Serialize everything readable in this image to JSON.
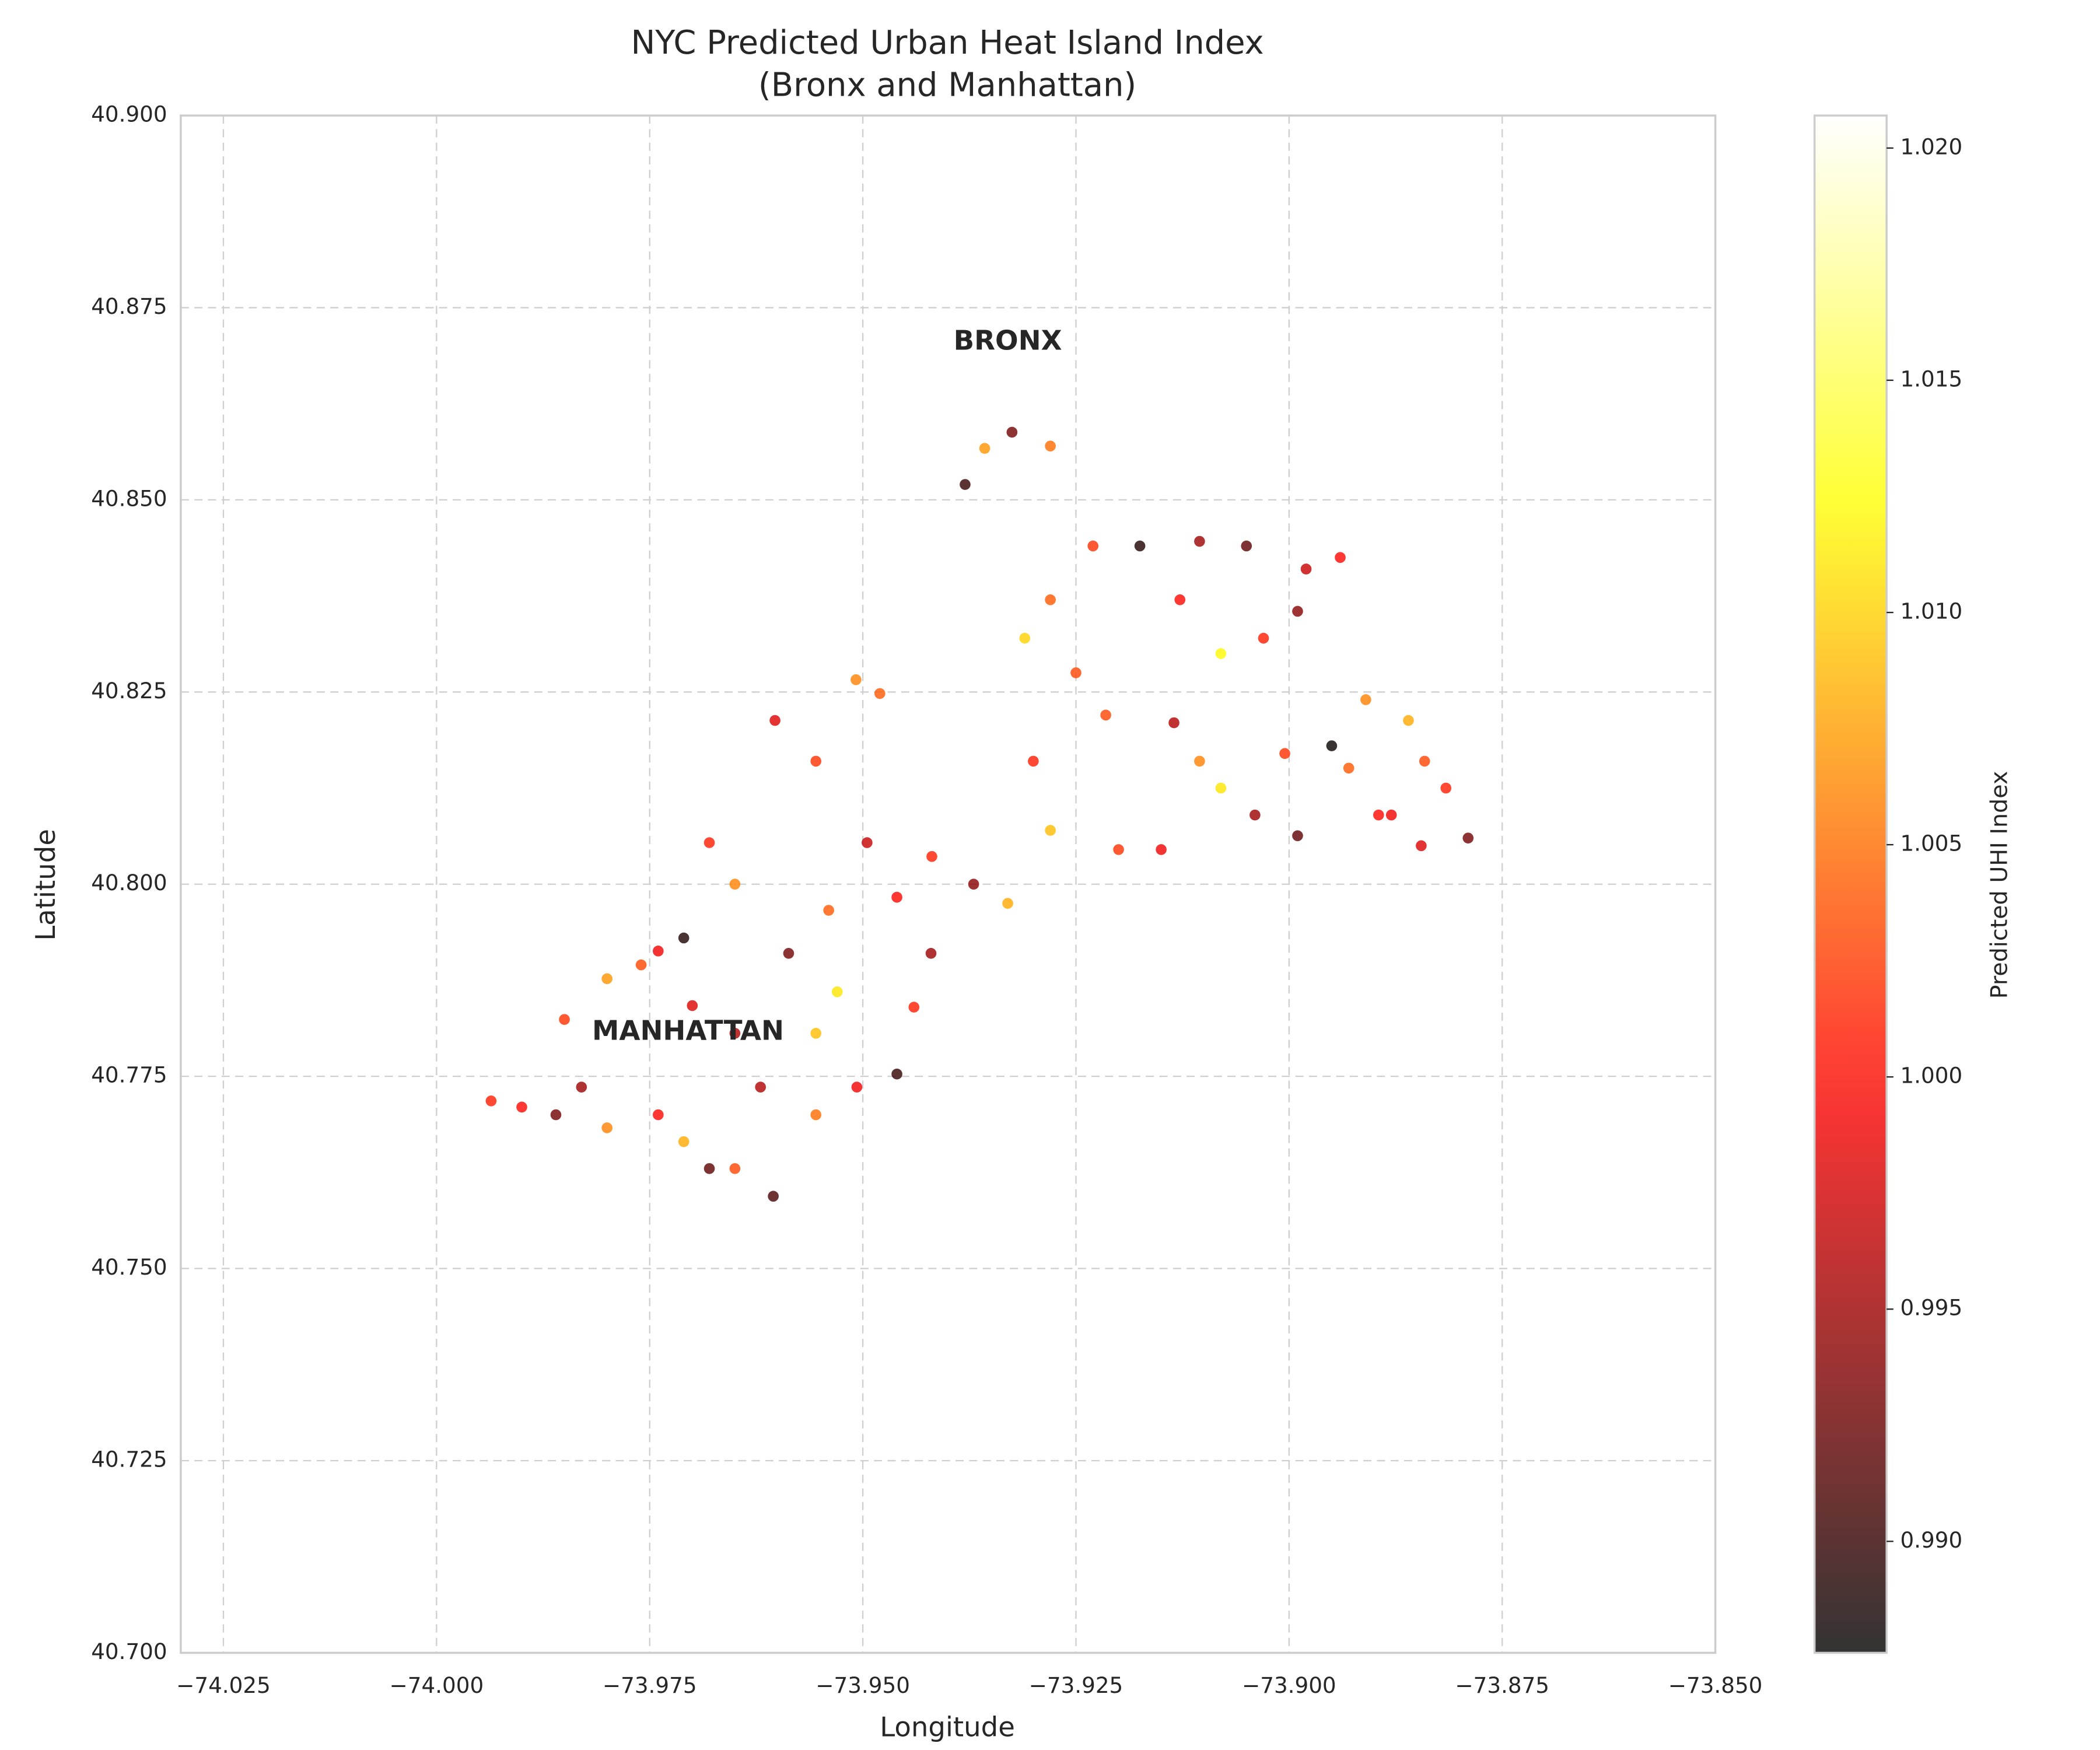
{
  "chart_data": {
    "type": "scatter",
    "title": "NYC Predicted Urban Heat Island Index",
    "subtitle": "(Bronx and Manhattan)",
    "x_label": "Longitude",
    "y_label": "Latitude",
    "colorbar_label": "Predicted UHI Index",
    "colormap": "hot",
    "alpha": 0.8,
    "grid": true,
    "annotations": [
      {
        "text": "BRONX",
        "x": -73.933,
        "y": 40.8705
      },
      {
        "text": "MANHATTAN",
        "x": -73.9705,
        "y": 40.7807
      }
    ],
    "xlim": [
      -74.03,
      -73.85
    ],
    "ylim": [
      40.7,
      40.9
    ],
    "clim": [
      0.9876,
      1.0207
    ],
    "xticks": [
      {
        "value": -74.025,
        "label": "−74.025"
      },
      {
        "value": -74.0,
        "label": "−74.000"
      },
      {
        "value": -73.975,
        "label": "−73.975"
      },
      {
        "value": -73.95,
        "label": "−73.950"
      },
      {
        "value": -73.925,
        "label": "−73.925"
      },
      {
        "value": -73.9,
        "label": "−73.900"
      },
      {
        "value": -73.875,
        "label": "−73.875"
      },
      {
        "value": -73.85,
        "label": "−73.850"
      }
    ],
    "yticks": [
      {
        "value": 40.7,
        "label": "40.700"
      },
      40.725,
      {
        "value": 40.75,
        "label": "40.750"
      },
      40.775,
      {
        "value": 40.8,
        "label": "40.800"
      },
      40.825,
      {
        "value": 40.85,
        "label": "40.850"
      },
      40.875,
      {
        "value": 40.9,
        "label": "40.900"
      }
    ],
    "cticks": [
      {
        "value": 0.99,
        "label": "0.990"
      },
      0.995,
      {
        "value": 1.0,
        "label": "1.000"
      },
      1.005,
      {
        "value": 1.01,
        "label": "1.010"
      },
      1.015,
      {
        "value": 1.02,
        "label": "1.020"
      }
    ],
    "x": [
      -73.938,
      -73.9357,
      -73.9325,
      -73.928,
      -73.923,
      -73.928,
      -73.931,
      -73.925,
      -73.93,
      -73.928,
      -73.92,
      -73.915,
      -73.9175,
      -73.9105,
      -73.905,
      -73.9128,
      -73.908,
      -73.903,
      -73.898,
      -73.894,
      -73.899,
      -73.9215,
      -73.9135,
      -73.9105,
      -73.908,
      -73.904,
      -73.899,
      -73.9005,
      -73.895,
      -73.891,
      -73.886,
      -73.8841,
      -73.8816,
      -73.879,
      -73.8845,
      -73.8895,
      -73.893,
      -73.888,
      -73.968,
      -73.965,
      -73.9587,
      -73.9555,
      -73.962,
      -73.965,
      -73.9605,
      -73.9555,
      -73.9507,
      -73.946,
      -73.944,
      -73.942,
      -73.946,
      -73.9495,
      -73.9555,
      -73.9603,
      -73.9508,
      -73.948,
      -73.9419,
      -73.937,
      -73.933,
      -73.954,
      -73.953,
      -73.971,
      -73.974,
      -73.98,
      -73.985,
      -73.983,
      -73.98,
      -73.974,
      -73.971,
      -73.968,
      -73.986,
      -73.99,
      -73.9936,
      -73.965,
      -73.97,
      -73.976
    ],
    "y": [
      40.852,
      40.8567,
      40.8588,
      40.857,
      40.844,
      40.837,
      40.832,
      40.8275,
      40.816,
      40.807,
      40.8045,
      40.8045,
      40.844,
      40.8446,
      40.844,
      40.837,
      40.83,
      40.832,
      40.841,
      40.8425,
      40.8355,
      40.822,
      40.821,
      40.816,
      40.8125,
      40.809,
      40.8063,
      40.817,
      40.818,
      40.824,
      40.8213,
      40.816,
      40.8125,
      40.806,
      40.805,
      40.809,
      40.8151,
      40.809,
      40.8054,
      40.8,
      40.791,
      40.7806,
      40.7736,
      40.763,
      40.7594,
      40.77,
      40.7736,
      40.7753,
      40.784,
      40.791,
      40.7983,
      40.8054,
      40.816,
      40.8213,
      40.8266,
      40.8248,
      40.8036,
      40.8,
      40.7975,
      40.7966,
      40.786,
      40.793,
      40.7913,
      40.7877,
      40.7824,
      40.7736,
      40.7683,
      40.77,
      40.7665,
      40.763,
      40.77,
      40.771,
      40.7718,
      40.7806,
      40.7842,
      40.7895
    ],
    "values": [
      0.99,
      1.007,
      0.993,
      1.005,
      1.002,
      1.004,
      1.01,
      1.003,
      1.001,
      1.009,
      1.002,
      0.999,
      0.989,
      0.995,
      0.992,
      1.0,
      1.012,
      1.001,
      0.997,
      1.0,
      0.994,
      1.003,
      0.996,
      1.006,
      1.011,
      0.995,
      0.992,
      1.002,
      0.988,
      1.006,
      1.008,
      1.003,
      1.001,
      0.993,
      0.998,
      1.0,
      1.004,
      0.999,
      1.001,
      1.006,
      0.993,
      1.009,
      0.996,
      1.003,
      0.991,
      1.005,
      0.999,
      0.99,
      1.001,
      0.995,
      1.0,
      0.997,
      1.002,
      0.998,
      1.006,
      1.004,
      1.001,
      0.994,
      1.008,
      1.004,
      1.011,
      0.989,
      0.999,
      1.007,
      1.002,
      0.995,
      1.006,
      1.0,
      1.008,
      0.992,
      0.993,
      1.0,
      1.001,
      0.996,
      0.998,
      1.003
    ]
  }
}
